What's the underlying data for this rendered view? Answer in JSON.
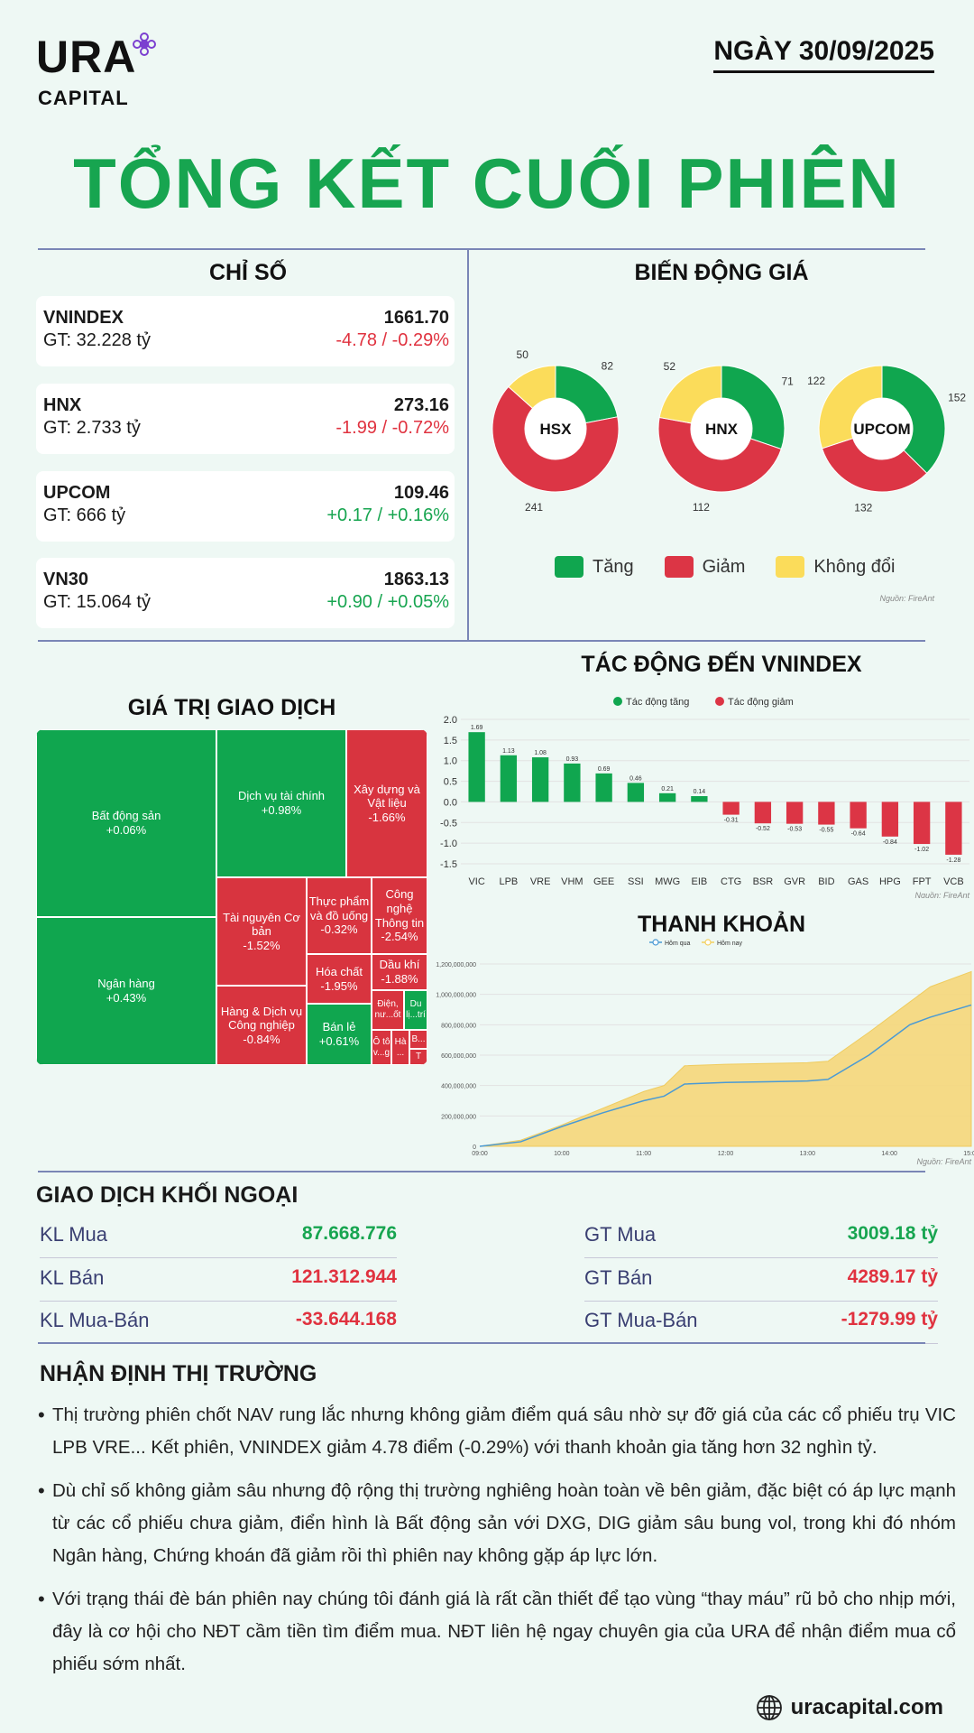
{
  "brand": {
    "name": "URA",
    "sub": "CAPITAL"
  },
  "date": "NGÀY 30/09/2025",
  "title": "TỔNG KẾT CUỐI PHIÊN",
  "indices": {
    "heading": "CHỈ SỐ",
    "items": [
      {
        "name": "VNINDEX",
        "gt": "GT: 32.228 tỷ",
        "value": "1661.70",
        "change": "-4.78 / -0.29%",
        "dir": "down"
      },
      {
        "name": "HNX",
        "gt": "GT: 2.733 tỷ",
        "value": "273.16",
        "change": "-1.99 / -0.72%",
        "dir": "down"
      },
      {
        "name": "UPCOM",
        "gt": "GT: 666 tỷ",
        "value": "109.46",
        "change": "+0.17 / +0.16%",
        "dir": "up"
      },
      {
        "name": "VN30",
        "gt": "GT: 15.064 tỷ",
        "value": "1863.13",
        "change": "+0.90 / +0.05%",
        "dir": "up"
      }
    ]
  },
  "breadth": {
    "heading": "BIẾN ĐỘNG GIÁ",
    "legend": [
      "Tăng",
      "Giảm",
      "Không đổi"
    ],
    "source": "Nguồn: FireAnt",
    "colors": {
      "up": "#10a64f",
      "down": "#dc3545",
      "flat": "#fbdc5a"
    }
  },
  "treemap": {
    "heading": "GIÁ TRỊ GIAO DỊCH",
    "tiles": [
      {
        "label": "Bất động sản",
        "pct": "+0.06%"
      },
      {
        "label": "Ngân hàng",
        "pct": "+0.43%"
      },
      {
        "label": "Dịch vụ tài chính",
        "pct": "+0.98%"
      },
      {
        "label": "Xây dựng và Vật liệu",
        "pct": "-1.66%"
      },
      {
        "label": "Tài nguyên Cơ bản",
        "pct": "-1.52%"
      },
      {
        "label": "Thực phẩm và đồ uống",
        "pct": "-0.32%"
      },
      {
        "label": "Công nghệ Thông tin",
        "pct": "-2.54%"
      },
      {
        "label": "Hàng & Dịch vụ Công nghiệp",
        "pct": "-0.84%"
      },
      {
        "label": "Hóa chất",
        "pct": "-1.95%"
      },
      {
        "label": "Dầu khí",
        "pct": "-1.88%"
      },
      {
        "label": "Bán lẻ",
        "pct": "+0.61%"
      },
      {
        "label": "Điện, nư...ốt",
        "pct": ""
      },
      {
        "label": "Du lị...trí",
        "pct": ""
      },
      {
        "label": "Ô tô v...g",
        "pct": ""
      },
      {
        "label": "Hà ...",
        "pct": ""
      },
      {
        "label": "B...",
        "pct": ""
      },
      {
        "label": "T",
        "pct": ""
      }
    ]
  },
  "chart_data": [
    {
      "type": "pie",
      "title": "HSX",
      "categories": [
        "Tăng",
        "Giảm",
        "Không đổi"
      ],
      "values": [
        82,
        241,
        50
      ]
    },
    {
      "type": "pie",
      "title": "HNX",
      "categories": [
        "Tăng",
        "Giảm",
        "Không đổi"
      ],
      "values": [
        71,
        112,
        52
      ]
    },
    {
      "type": "pie",
      "title": "UPCOM",
      "categories": [
        "Tăng",
        "Giảm",
        "Không đổi"
      ],
      "values": [
        152,
        132,
        122
      ]
    },
    {
      "type": "bar",
      "title": "TÁC ĐỘNG ĐẾN VNINDEX",
      "legend": [
        "Tác động tăng",
        "Tác động giảm"
      ],
      "categories": [
        "VIC",
        "LPB",
        "VRE",
        "VHM",
        "GEE",
        "SSI",
        "MWG",
        "EIB",
        "CTG",
        "BSR",
        "GVR",
        "BID",
        "GAS",
        "HPG",
        "FPT",
        "VCB"
      ],
      "values": [
        1.69,
        1.13,
        1.08,
        0.93,
        0.69,
        0.46,
        0.21,
        0.14,
        -0.31,
        -0.52,
        -0.53,
        -0.55,
        -0.64,
        -0.84,
        -1.02,
        -1.28
      ],
      "ylim": [
        -1.5,
        2.0
      ],
      "yticks": [
        "2.0",
        "1.5",
        "1.0",
        "0.5",
        "0.0",
        "-0.5",
        "-1.0",
        "-1.5"
      ],
      "source": "Nguồn: FireAnt"
    },
    {
      "type": "area",
      "title": "THANH KHOẢN",
      "series": [
        {
          "name": "Hôm qua",
          "values": [
            0,
            30000000,
            130000000,
            220000000,
            300000000,
            330000000,
            410000000,
            420000000,
            425000000,
            430000000,
            440000000,
            600000000,
            800000000,
            850000000,
            930000000
          ]
        },
        {
          "name": "Hôm nay",
          "values": [
            0,
            40000000,
            140000000,
            250000000,
            360000000,
            400000000,
            530000000,
            540000000,
            545000000,
            550000000,
            560000000,
            750000000,
            950000000,
            1050000000,
            1150000000
          ]
        }
      ],
      "x": [
        "09:00",
        "09:30",
        "10:00",
        "10:30",
        "11:00",
        "11:15",
        "11:30",
        "12:00",
        "12:30",
        "13:00",
        "13:15",
        "13:45",
        "14:15",
        "14:30",
        "15:00"
      ],
      "xticks": [
        "09:00",
        "10:00",
        "11:00",
        "12:00",
        "13:00",
        "14:00",
        "15:00"
      ],
      "yticks": [
        "0",
        "200,000,000",
        "400,000,000",
        "600,000,000",
        "800,000,000",
        "1,000,000,000",
        "1,200,000,000"
      ],
      "ylim": [
        0,
        1200000000
      ],
      "source": "Nguồn: FireAnt"
    }
  ],
  "foreign": {
    "heading": "GIAO DỊCH KHỐI NGOẠI",
    "left": [
      {
        "label": "KL Mua",
        "value": "87.668.776",
        "dir": "up"
      },
      {
        "label": "KL Bán",
        "value": "121.312.944",
        "dir": "down"
      },
      {
        "label": "KL Mua-Bán",
        "value": "-33.644.168",
        "dir": "down"
      }
    ],
    "right": [
      {
        "label": "GT Mua",
        "value": "3009.18 tỷ",
        "dir": "up"
      },
      {
        "label": "GT Bán",
        "value": "4289.17 tỷ",
        "dir": "down"
      },
      {
        "label": "GT Mua-Bán",
        "value": "-1279.99 tỷ",
        "dir": "down"
      }
    ]
  },
  "outlook": {
    "heading": "NHẬN ĐỊNH THỊ TRƯỜNG",
    "paragraphs": [
      "Thị trường phiên chốt NAV rung lắc nhưng không giảm điểm quá sâu nhờ sự đỡ giá của các cổ phiếu trụ VIC LPB VRE... Kết phiên, VNINDEX giảm 4.78 điểm (-0.29%) với thanh khoản gia tăng hơn 32 nghìn tỷ.",
      "Dù chỉ số không giảm sâu nhưng độ rộng thị trường nghiêng hoàn toàn về bên giảm, đặc biệt có áp lực mạnh từ các cổ phiếu chưa giảm, điển hình là Bất động sản với DXG, DIG giảm sâu bung vol, trong khi đó nhóm Ngân hàng, Chứng khoán đã giảm rồi thì phiên nay không gặp áp lực lớn.",
      "Với trạng thái đè bán phiên nay chúng tôi đánh giá là rất cần thiết để tạo vùng “thay máu” rũ bỏ cho nhịp mới, đây là cơ hội cho NĐT cầm tiền tìm điểm mua. NĐT liên hệ ngay chuyên gia của URA để nhận điểm mua cổ phiếu sớm nhất."
    ]
  },
  "website": "uracapital.com"
}
